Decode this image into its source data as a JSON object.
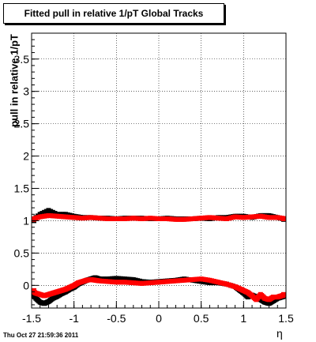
{
  "header": {
    "title": "Fitted pull in relative 1/pT  Global Tracks",
    "footer_timestamp": "Thu Oct 27 21:59:36 2011"
  },
  "chart_data": {
    "type": "scatter",
    "title": "Fitted pull in relative 1/pT  Global Tracks",
    "xlabel": "η",
    "ylabel": "pull in relative 1/pT",
    "xlim": [
      -1.5,
      1.5
    ],
    "ylim": [
      -0.35,
      3.9
    ],
    "x_ticks": [
      "-1.5",
      "-1",
      "-0.5",
      "0",
      "0.5",
      "1",
      "1.5"
    ],
    "y_ticks": [
      "0",
      "0.5",
      "1",
      "1.5",
      "2",
      "2.5",
      "3",
      "3.5"
    ],
    "grid": true,
    "colors": {
      "black": "#000000",
      "red": "#ff0000"
    },
    "series": [
      {
        "color": "black",
        "x": [
          -1.5,
          -1.4,
          -1.3,
          -1.2,
          -1.1,
          -1.0,
          -0.9,
          -0.8,
          -0.7,
          -0.6,
          -0.5,
          -0.4,
          -0.3,
          -0.2,
          -0.1,
          0.0,
          0.1,
          0.2,
          0.3,
          0.4,
          0.5,
          0.6,
          0.7,
          0.8,
          0.9,
          1.0,
          1.1,
          1.2,
          1.3,
          1.4,
          1.5
        ],
        "y": [
          1.0,
          1.1,
          1.16,
          1.1,
          1.1,
          1.07,
          1.05,
          1.05,
          1.04,
          1.04,
          1.03,
          1.04,
          1.04,
          1.04,
          1.03,
          1.03,
          1.04,
          1.03,
          1.03,
          1.03,
          1.04,
          1.03,
          1.05,
          1.05,
          1.07,
          1.07,
          1.05,
          1.08,
          1.08,
          1.05,
          1.02
        ]
      },
      {
        "color": "red",
        "x": [
          -1.5,
          -1.4,
          -1.3,
          -1.2,
          -1.1,
          -1.0,
          -0.9,
          -0.8,
          -0.7,
          -0.6,
          -0.5,
          -0.4,
          -0.3,
          -0.2,
          -0.1,
          0.0,
          0.1,
          0.2,
          0.3,
          0.4,
          0.5,
          0.6,
          0.7,
          0.8,
          0.9,
          1.0,
          1.1,
          1.2,
          1.3,
          1.4,
          1.5
        ],
        "y": [
          1.02,
          1.06,
          1.08,
          1.07,
          1.06,
          1.05,
          1.04,
          1.05,
          1.04,
          1.03,
          1.03,
          1.03,
          1.04,
          1.03,
          1.04,
          1.03,
          1.03,
          1.02,
          1.02,
          1.03,
          1.04,
          1.05,
          1.04,
          1.03,
          1.06,
          1.05,
          1.06,
          1.07,
          1.05,
          1.05,
          1.03
        ]
      },
      {
        "color": "black",
        "x": [
          -1.5,
          -1.45,
          -1.4,
          -1.35,
          -1.3,
          -1.25,
          -1.2,
          -1.15,
          -1.1,
          -1.05,
          -1.0,
          -0.95,
          -0.9,
          -0.85,
          -0.8,
          -0.75,
          -0.7,
          -0.6,
          -0.5,
          -0.4,
          -0.3,
          -0.2,
          -0.1,
          0.0,
          0.1,
          0.2,
          0.3,
          0.4,
          0.5,
          0.6,
          0.7,
          0.8,
          0.9,
          0.95,
          1.0,
          1.05,
          1.1,
          1.15,
          1.2,
          1.25,
          1.3,
          1.35,
          1.4,
          1.45,
          1.5
        ],
        "y": [
          -0.12,
          -0.2,
          -0.26,
          -0.28,
          -0.25,
          -0.2,
          -0.17,
          -0.13,
          -0.1,
          -0.06,
          -0.03,
          0.02,
          0.05,
          0.08,
          0.1,
          0.12,
          0.1,
          0.1,
          0.11,
          0.1,
          0.09,
          0.06,
          0.05,
          0.06,
          0.07,
          0.08,
          0.1,
          0.08,
          0.06,
          0.04,
          0.04,
          0.02,
          -0.02,
          -0.07,
          -0.12,
          -0.18,
          -0.15,
          -0.18,
          -0.22,
          -0.26,
          -0.28,
          -0.24,
          -0.2,
          -0.18,
          -0.16
        ]
      },
      {
        "color": "red",
        "x": [
          -1.5,
          -1.45,
          -1.4,
          -1.35,
          -1.3,
          -1.25,
          -1.2,
          -1.15,
          -1.1,
          -1.05,
          -1.0,
          -0.95,
          -0.9,
          -0.85,
          -0.8,
          -0.75,
          -0.7,
          -0.6,
          -0.5,
          -0.4,
          -0.3,
          -0.2,
          -0.1,
          0.0,
          0.1,
          0.2,
          0.3,
          0.4,
          0.5,
          0.6,
          0.7,
          0.8,
          0.9,
          0.95,
          1.0,
          1.05,
          1.1,
          1.15,
          1.2,
          1.25,
          1.3,
          1.35,
          1.4,
          1.45,
          1.5
        ],
        "y": [
          -0.08,
          -0.12,
          -0.14,
          -0.16,
          -0.14,
          -0.12,
          -0.1,
          -0.08,
          -0.06,
          -0.03,
          0.0,
          0.04,
          0.06,
          0.08,
          0.09,
          0.08,
          0.07,
          0.06,
          0.05,
          0.05,
          0.04,
          0.03,
          0.04,
          0.05,
          0.06,
          0.07,
          0.08,
          0.09,
          0.1,
          0.08,
          0.05,
          0.02,
          -0.02,
          -0.05,
          -0.08,
          -0.11,
          -0.16,
          -0.22,
          -0.14,
          -0.2,
          -0.22,
          -0.18,
          -0.18,
          -0.16,
          -0.14
        ]
      }
    ]
  }
}
